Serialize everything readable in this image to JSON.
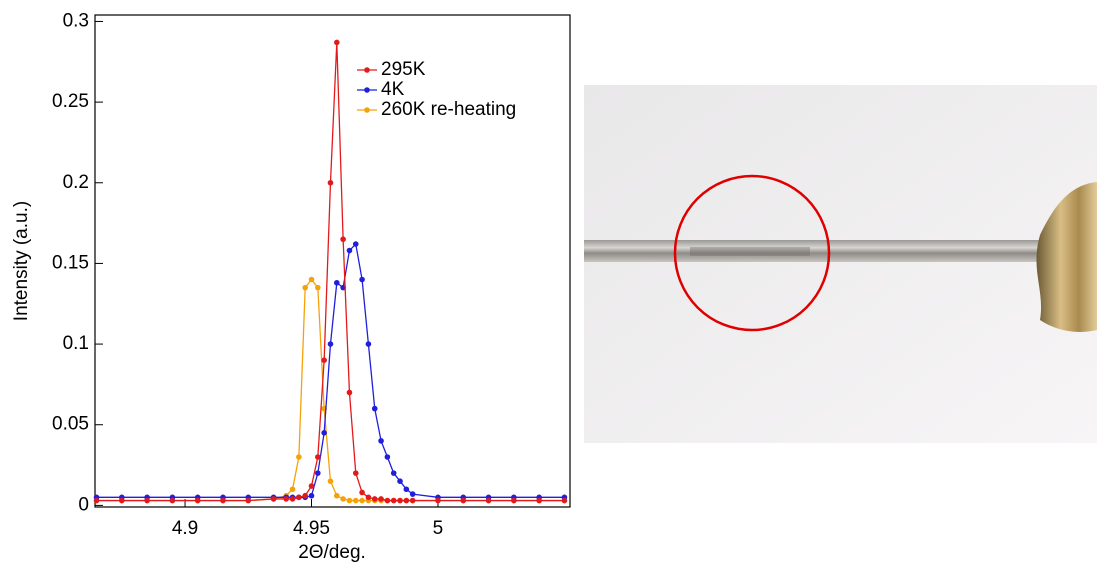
{
  "chart_data": {
    "type": "line",
    "x_label": "2Θ/deg.",
    "y_label": "Intensity (a.u.)",
    "x": [
      4.865,
      4.875,
      4.885,
      4.895,
      4.905,
      4.915,
      4.925,
      4.935,
      4.94,
      4.9425,
      4.945,
      4.9475,
      4.95,
      4.9525,
      4.955,
      4.9575,
      4.96,
      4.9625,
      4.965,
      4.9675,
      4.97,
      4.9725,
      4.975,
      4.9775,
      4.98,
      4.9825,
      4.985,
      4.9875,
      4.99,
      5,
      5.01,
      5.02,
      5.03,
      5.04,
      5.05
    ],
    "series": [
      {
        "name": "295K",
        "color": "#e31a1c",
        "values": [
          0.003,
          0.003,
          0.003,
          0.003,
          0.003,
          0.003,
          0.003,
          0.004,
          0.004,
          0.004,
          0.005,
          0.006,
          0.012,
          0.03,
          0.09,
          0.2,
          0.287,
          0.165,
          0.07,
          0.02,
          0.008,
          0.005,
          0.004,
          0.004,
          0.003,
          0.003,
          0.003,
          0.003,
          0.003,
          0.003,
          0.003,
          0.003,
          0.003,
          0.003,
          0.003
        ]
      },
      {
        "name": "4K",
        "color": "#1f1fdc",
        "values": [
          0.005,
          0.005,
          0.005,
          0.005,
          0.005,
          0.005,
          0.005,
          0.005,
          0.005,
          0.005,
          0.005,
          0.005,
          0.006,
          0.02,
          0.045,
          0.1,
          0.138,
          0.135,
          0.158,
          0.162,
          0.14,
          0.1,
          0.06,
          0.04,
          0.03,
          0.02,
          0.015,
          0.01,
          0.007,
          0.005,
          0.005,
          0.005,
          0.005,
          0.005,
          0.005
        ]
      },
      {
        "name": "260K re-heating",
        "color": "#f5a20a",
        "values": [
          0.003,
          0.003,
          0.003,
          0.003,
          0.003,
          0.003,
          0.003,
          0.004,
          0.006,
          0.01,
          0.03,
          0.135,
          0.14,
          0.135,
          0.06,
          0.015,
          0.006,
          0.004,
          0.003,
          0.003,
          0.003,
          0.003,
          0.003,
          0.003,
          0.003,
          0.003,
          0.003,
          0.003,
          0.003,
          0.003,
          0.003,
          0.003,
          0.003,
          0.003,
          0.003
        ]
      }
    ],
    "xlim": [
      4.8644,
      5.0522
    ],
    "xticks": [
      4.9,
      4.95,
      5
    ],
    "ylim": [
      -0.001,
      0.304
    ],
    "yticks": [
      0,
      0.05,
      0.1,
      0.15,
      0.2,
      0.25,
      0.3
    ]
  }
}
